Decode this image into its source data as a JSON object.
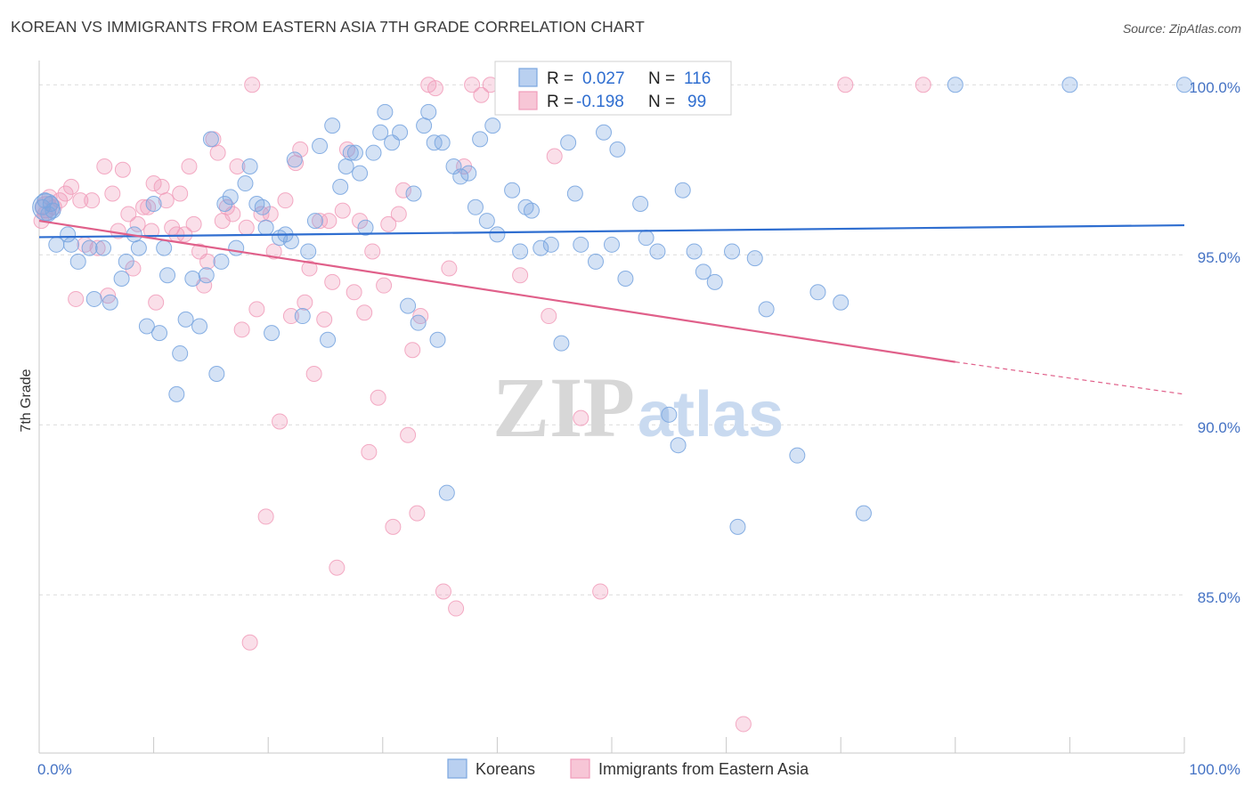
{
  "title": "KOREAN VS IMMIGRANTS FROM EASTERN ASIA 7TH GRADE CORRELATION CHART",
  "source": "Source: ZipAtlas.com",
  "watermark": {
    "zip": "ZIP",
    "atlas": "atlas"
  },
  "legend": {
    "r_label": "R =",
    "n_label": "N =",
    "rows": [
      {
        "r": "0.027",
        "n": "116"
      },
      {
        "r": "-0.198",
        "n": "99"
      }
    ]
  },
  "bottom_legend": [
    "Koreans",
    "Immigrants from Eastern Asia"
  ],
  "chart_data": {
    "type": "scatter",
    "ylabel": "7th Grade",
    "x_tick_labels": [
      "0.0%",
      "100.0%"
    ],
    "y_tick_labels": [
      "100.0%",
      "95.0%",
      "90.0%",
      "85.0%"
    ],
    "xlim": [
      0,
      100
    ],
    "ylim": [
      80.4,
      100.4
    ],
    "colors": {
      "Koreans": "#7aa6e0",
      "Immigrants from Eastern Asia": "#f19cba",
      "blue_line": "#2f6ed0",
      "pink_line": "#e0608a"
    },
    "series": [
      {
        "name": "Koreans",
        "trend": {
          "x0": 0,
          "y0": 95.52,
          "x1": 100,
          "y1": 95.87
        },
        "points": [
          [
            0.3,
            96.4
          ],
          [
            0.5,
            96.6
          ],
          [
            0.8,
            96.2
          ],
          [
            1.0,
            96.5
          ],
          [
            1.2,
            96.3
          ],
          [
            1.5,
            95.3
          ],
          [
            2.5,
            95.6
          ],
          [
            2.8,
            95.3
          ],
          [
            3.4,
            94.8
          ],
          [
            4.4,
            95.2
          ],
          [
            4.8,
            93.7
          ],
          [
            5.6,
            95.2
          ],
          [
            6.2,
            93.6
          ],
          [
            7.2,
            94.3
          ],
          [
            7.6,
            94.8
          ],
          [
            8.3,
            95.6
          ],
          [
            8.7,
            95.2
          ],
          [
            9.4,
            92.9
          ],
          [
            10.0,
            96.5
          ],
          [
            10.5,
            92.7
          ],
          [
            10.9,
            95.2
          ],
          [
            11.2,
            94.4
          ],
          [
            12.0,
            90.9
          ],
          [
            12.3,
            92.1
          ],
          [
            12.8,
            93.1
          ],
          [
            13.4,
            94.3
          ],
          [
            14.0,
            92.9
          ],
          [
            14.6,
            94.4
          ],
          [
            15.0,
            98.4
          ],
          [
            15.5,
            91.5
          ],
          [
            15.9,
            94.8
          ],
          [
            16.2,
            96.5
          ],
          [
            16.7,
            96.7
          ],
          [
            17.2,
            95.2
          ],
          [
            18.0,
            97.1
          ],
          [
            18.4,
            97.6
          ],
          [
            19.0,
            96.5
          ],
          [
            19.5,
            96.4
          ],
          [
            19.8,
            95.8
          ],
          [
            20.3,
            92.7
          ],
          [
            21.0,
            95.5
          ],
          [
            21.5,
            95.6
          ],
          [
            22.0,
            95.4
          ],
          [
            22.3,
            97.8
          ],
          [
            23.0,
            93.2
          ],
          [
            23.5,
            95.1
          ],
          [
            24.1,
            96.0
          ],
          [
            24.5,
            98.2
          ],
          [
            25.2,
            92.5
          ],
          [
            25.6,
            98.8
          ],
          [
            26.3,
            97.0
          ],
          [
            26.8,
            97.6
          ],
          [
            27.2,
            98.0
          ],
          [
            27.6,
            98.0
          ],
          [
            28.0,
            97.4
          ],
          [
            28.5,
            95.8
          ],
          [
            29.2,
            98.0
          ],
          [
            29.8,
            98.6
          ],
          [
            30.2,
            99.2
          ],
          [
            30.8,
            98.3
          ],
          [
            31.5,
            98.6
          ],
          [
            32.2,
            93.5
          ],
          [
            32.7,
            96.8
          ],
          [
            33.1,
            93.0
          ],
          [
            33.6,
            98.8
          ],
          [
            34.0,
            99.2
          ],
          [
            34.5,
            98.3
          ],
          [
            34.8,
            92.5
          ],
          [
            35.2,
            98.3
          ],
          [
            35.6,
            88.0
          ],
          [
            36.2,
            97.6
          ],
          [
            36.8,
            97.3
          ],
          [
            37.5,
            97.4
          ],
          [
            38.1,
            96.4
          ],
          [
            38.5,
            98.4
          ],
          [
            39.1,
            96.0
          ],
          [
            39.6,
            98.8
          ],
          [
            40.0,
            95.6
          ],
          [
            40.6,
            100.0
          ],
          [
            41.3,
            96.9
          ],
          [
            42.0,
            95.1
          ],
          [
            42.5,
            96.4
          ],
          [
            43.0,
            96.3
          ],
          [
            43.8,
            95.2
          ],
          [
            44.7,
            95.3
          ],
          [
            45.6,
            92.4
          ],
          [
            46.2,
            98.3
          ],
          [
            46.8,
            96.8
          ],
          [
            47.3,
            95.3
          ],
          [
            48.0,
            99.4
          ],
          [
            48.6,
            94.8
          ],
          [
            49.3,
            98.6
          ],
          [
            50.0,
            95.3
          ],
          [
            50.5,
            98.1
          ],
          [
            51.2,
            94.3
          ],
          [
            51.8,
            100.0
          ],
          [
            52.5,
            96.5
          ],
          [
            53.0,
            95.5
          ],
          [
            54.0,
            95.1
          ],
          [
            55.0,
            90.3
          ],
          [
            55.8,
            89.4
          ],
          [
            56.2,
            96.9
          ],
          [
            57.2,
            95.1
          ],
          [
            58.0,
            94.5
          ],
          [
            59.0,
            94.2
          ],
          [
            60.5,
            95.1
          ],
          [
            61.0,
            87.0
          ],
          [
            62.5,
            94.9
          ],
          [
            63.5,
            93.4
          ],
          [
            66.2,
            89.1
          ],
          [
            68.0,
            93.9
          ],
          [
            70.0,
            93.6
          ],
          [
            72.0,
            87.4
          ],
          [
            80.0,
            100.0
          ],
          [
            90.0,
            100.0
          ],
          [
            100.0,
            100.0
          ]
        ]
      },
      {
        "name": "Immigrants from Eastern Asia",
        "trend": {
          "x0": 0,
          "y0": 96.0,
          "x1": 80,
          "y1": 91.85,
          "dash_to_x": 100,
          "dash_to_y": 90.9
        },
        "points": [
          [
            0.2,
            96.0
          ],
          [
            0.5,
            96.2
          ],
          [
            0.9,
            96.7
          ],
          [
            1.3,
            96.4
          ],
          [
            1.8,
            96.6
          ],
          [
            2.3,
            96.8
          ],
          [
            2.8,
            97.0
          ],
          [
            3.2,
            93.7
          ],
          [
            3.6,
            96.6
          ],
          [
            4.0,
            95.3
          ],
          [
            4.6,
            96.6
          ],
          [
            5.1,
            95.2
          ],
          [
            5.7,
            97.6
          ],
          [
            6.0,
            93.8
          ],
          [
            6.4,
            96.8
          ],
          [
            6.9,
            95.7
          ],
          [
            7.3,
            97.5
          ],
          [
            7.8,
            96.2
          ],
          [
            8.2,
            94.6
          ],
          [
            8.6,
            95.9
          ],
          [
            9.1,
            96.4
          ],
          [
            9.5,
            96.4
          ],
          [
            9.8,
            95.7
          ],
          [
            10.0,
            97.1
          ],
          [
            10.2,
            93.6
          ],
          [
            10.7,
            97.0
          ],
          [
            11.1,
            96.6
          ],
          [
            11.6,
            95.8
          ],
          [
            12.0,
            95.6
          ],
          [
            12.3,
            96.8
          ],
          [
            12.7,
            95.6
          ],
          [
            13.1,
            97.6
          ],
          [
            13.5,
            95.9
          ],
          [
            14.0,
            95.1
          ],
          [
            14.4,
            94.1
          ],
          [
            14.7,
            94.8
          ],
          [
            15.2,
            98.4
          ],
          [
            15.6,
            98.0
          ],
          [
            16.0,
            96.0
          ],
          [
            16.4,
            96.4
          ],
          [
            16.9,
            96.2
          ],
          [
            17.3,
            97.6
          ],
          [
            17.7,
            92.8
          ],
          [
            18.1,
            95.8
          ],
          [
            18.6,
            100.0
          ],
          [
            19.0,
            93.4
          ],
          [
            19.4,
            96.2
          ],
          [
            19.8,
            87.3
          ],
          [
            20.2,
            96.2
          ],
          [
            20.5,
            95.1
          ],
          [
            21.0,
            90.1
          ],
          [
            21.5,
            96.6
          ],
          [
            22.0,
            93.2
          ],
          [
            22.4,
            97.7
          ],
          [
            22.8,
            98.1
          ],
          [
            23.2,
            93.6
          ],
          [
            23.6,
            94.6
          ],
          [
            24.0,
            91.5
          ],
          [
            24.5,
            96.0
          ],
          [
            24.9,
            93.1
          ],
          [
            25.3,
            96.0
          ],
          [
            25.6,
            94.2
          ],
          [
            26.0,
            85.8
          ],
          [
            26.5,
            96.3
          ],
          [
            26.9,
            98.1
          ],
          [
            27.5,
            93.9
          ],
          [
            28.0,
            96.0
          ],
          [
            28.4,
            93.3
          ],
          [
            28.8,
            89.2
          ],
          [
            29.1,
            95.1
          ],
          [
            29.6,
            90.8
          ],
          [
            30.1,
            94.1
          ],
          [
            30.5,
            95.9
          ],
          [
            30.9,
            87.0
          ],
          [
            31.4,
            96.2
          ],
          [
            31.8,
            96.9
          ],
          [
            32.2,
            89.7
          ],
          [
            32.6,
            92.2
          ],
          [
            33.0,
            87.4
          ],
          [
            33.3,
            93.2
          ],
          [
            34.0,
            100.0
          ],
          [
            34.6,
            99.9
          ],
          [
            35.3,
            85.1
          ],
          [
            35.8,
            94.6
          ],
          [
            36.4,
            84.6
          ],
          [
            37.1,
            97.6
          ],
          [
            37.8,
            100.0
          ],
          [
            38.6,
            99.7
          ],
          [
            39.4,
            100.0
          ],
          [
            42.0,
            94.4
          ],
          [
            44.5,
            93.2
          ],
          [
            45.0,
            97.9
          ],
          [
            47.3,
            90.2
          ],
          [
            49.0,
            85.1
          ],
          [
            50.5,
            100.0
          ],
          [
            61.5,
            81.2
          ],
          [
            70.4,
            100.0
          ],
          [
            77.2,
            100.0
          ],
          [
            18.4,
            83.6
          ]
        ]
      }
    ]
  }
}
